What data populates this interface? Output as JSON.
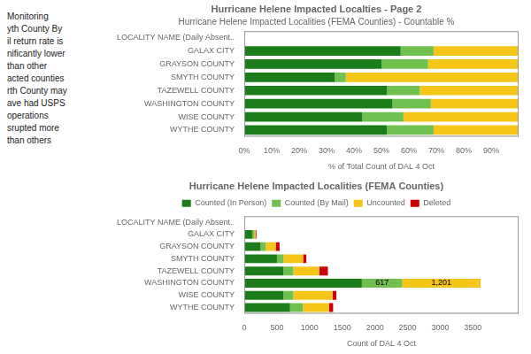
{
  "chart_data": [
    {
      "type": "bar",
      "title": "Hurricane Helene Impacted Localties - Page 2",
      "subtitle": "Hurricane Helene Impacted Localities (FEMA Counties) - Countable %",
      "annotations": [
        "Monitoring",
        "yth County By",
        "il return rate is",
        "nificantly lower",
        "than other",
        "acted counties",
        "rth County may",
        "ave had USPS",
        "operations",
        "srupted more",
        "than others"
      ],
      "orientation": "horizontal",
      "stacked": true,
      "grid": false,
      "categories": [
        "LOCALITY NAME (Daily Absent..",
        "GALAX CITY",
        "GRAYSON COUNTY",
        "SMYTH COUNTY",
        "TAZEWELL COUNTY",
        "WASHINGTON COUNTY",
        "WISE COUNTY",
        "WYTHE COUNTY"
      ],
      "series": [
        {
          "name": "Counted (In Person)",
          "color": "#1a7d1a",
          "values": [
            0,
            57,
            50,
            33,
            52,
            54,
            43,
            52
          ]
        },
        {
          "name": "Counted (By Mail)",
          "color": "#70c050",
          "values": [
            0,
            12,
            17,
            4,
            12,
            14,
            15,
            17
          ]
        },
        {
          "name": "Uncounted",
          "color": "#f5c518",
          "values": [
            0,
            31,
            33,
            63,
            36,
            32,
            42,
            31
          ]
        }
      ],
      "xlabel": "% of Total Count of DAL 4 Oct",
      "xlim": [
        0,
        100
      ],
      "xticks": [
        {
          "value": 0,
          "label": "0%"
        },
        {
          "value": 10,
          "label": "10%"
        },
        {
          "value": 20,
          "label": "20%"
        },
        {
          "value": 30,
          "label": "30%"
        },
        {
          "value": 40,
          "label": "40%"
        },
        {
          "value": 50,
          "label": "50%"
        },
        {
          "value": 60,
          "label": "60%"
        },
        {
          "value": 70,
          "label": "70%"
        },
        {
          "value": 80,
          "label": "80%"
        },
        {
          "value": 90,
          "label": "90%"
        }
      ]
    },
    {
      "type": "bar",
      "title": "Hurricane Helene Impacted Localities (FEMA Counties)",
      "legend": "top",
      "orientation": "horizontal",
      "stacked": true,
      "grid": false,
      "categories": [
        "LOCALITY NAME (Daily Absent..",
        "GALAX CITY",
        "GRAYSON COUNTY",
        "SMYTH COUNTY",
        "TAZEWELL COUNTY",
        "WASHINGTON COUNTY",
        "WISE COUNTY",
        "WYTHE COUNTY"
      ],
      "series": [
        {
          "name": "Counted (In Person)",
          "color": "#1a7d1a",
          "values": [
            0,
            120,
            250,
            500,
            600,
            1800,
            600,
            700
          ]
        },
        {
          "name": "Counted (By Mail)",
          "color": "#70c050",
          "values": [
            0,
            30,
            80,
            100,
            150,
            617,
            150,
            200
          ],
          "value_labels": [
            null,
            null,
            null,
            null,
            null,
            "617",
            null,
            null
          ]
        },
        {
          "name": "Uncounted",
          "color": "#f5c518",
          "values": [
            0,
            20,
            150,
            300,
            400,
            1201,
            600,
            400
          ],
          "value_labels": [
            null,
            null,
            null,
            null,
            null,
            "1,201",
            null,
            null
          ]
        },
        {
          "name": "Deleted",
          "color": "#cc0000",
          "values": [
            0,
            15,
            60,
            50,
            130,
            0,
            60,
            60
          ]
        }
      ],
      "xlabel": "Count of DAL 4 Oct",
      "xlim": [
        0,
        4200
      ],
      "xticks": [
        0,
        500,
        1000,
        1500,
        2000,
        2500,
        3000,
        3500
      ]
    }
  ]
}
